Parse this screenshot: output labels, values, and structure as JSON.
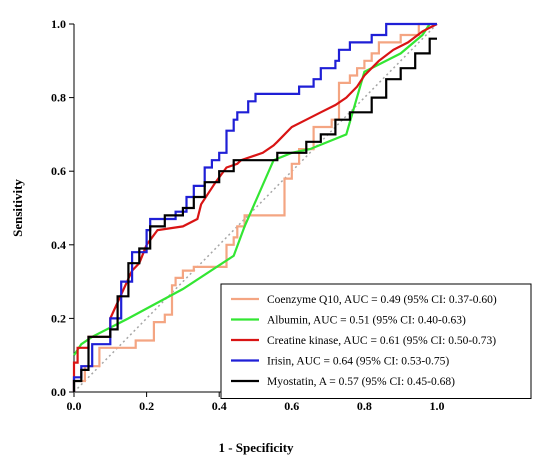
{
  "chart_data": {
    "type": "line",
    "title": "",
    "xlabel": "1 - Specificity",
    "ylabel": "Sensitivity",
    "xlim": [
      0,
      1
    ],
    "ylim": [
      0,
      1
    ],
    "xticks": [
      "0.0",
      "0.2",
      "0.4",
      "0.6",
      "0.8",
      "1.0"
    ],
    "yticks": [
      "0.0",
      "0.2",
      "0.4",
      "0.6",
      "0.8",
      "1.0"
    ],
    "grid": false,
    "legend_position": "bottom-right",
    "reference_line": {
      "style": "dotted",
      "color": "#a6a6a6",
      "x": [
        0,
        1
      ],
      "y": [
        0,
        1
      ]
    },
    "series": [
      {
        "name": "Coenzyme Q10, AUC = 0.49 (95% CI: 0.37-0.60)",
        "color": "#f4a582",
        "x": [
          0,
          0,
          0.03,
          0.03,
          0.07,
          0.07,
          0.17,
          0.17,
          0.22,
          0.22,
          0.25,
          0.25,
          0.27,
          0.27,
          0.28,
          0.28,
          0.3,
          0.3,
          0.33,
          0.33,
          0.42,
          0.42,
          0.44,
          0.44,
          0.45,
          0.45,
          0.47,
          0.47,
          0.49,
          0.49,
          0.58,
          0.58,
          0.6,
          0.6,
          0.62,
          0.62,
          0.66,
          0.66,
          0.71,
          0.71,
          0.73,
          0.73,
          0.76,
          0.76,
          0.78,
          0.78,
          0.8,
          0.8,
          0.82,
          0.82,
          0.84,
          0.84,
          0.9,
          0.9,
          0.95,
          0.95,
          1.0,
          1.0
        ],
        "y": [
          0,
          0.03,
          0.03,
          0.07,
          0.07,
          0.12,
          0.12,
          0.14,
          0.14,
          0.19,
          0.19,
          0.21,
          0.21,
          0.29,
          0.29,
          0.31,
          0.31,
          0.33,
          0.33,
          0.34,
          0.34,
          0.4,
          0.4,
          0.42,
          0.42,
          0.45,
          0.45,
          0.48,
          0.48,
          0.48,
          0.48,
          0.58,
          0.58,
          0.62,
          0.62,
          0.66,
          0.66,
          0.72,
          0.72,
          0.74,
          0.74,
          0.84,
          0.84,
          0.86,
          0.86,
          0.88,
          0.88,
          0.9,
          0.9,
          0.92,
          0.92,
          0.95,
          0.95,
          0.97,
          0.97,
          1.0,
          1.0,
          1.0
        ]
      },
      {
        "name": "Albumin, AUC = 0.51 (95% CI: 0.40-0.63)",
        "color": "#33e633",
        "x": [
          0.0,
          0.02,
          0.05,
          0.15,
          0.3,
          0.44,
          0.47,
          0.55,
          0.6,
          0.65,
          0.75,
          0.8,
          0.9,
          0.96,
          0.98
        ],
        "y": [
          0.1,
          0.13,
          0.15,
          0.2,
          0.28,
          0.37,
          0.45,
          0.63,
          0.65,
          0.66,
          0.7,
          0.87,
          0.92,
          0.97,
          1.0
        ]
      },
      {
        "name": "Creatine kinase, AUC = 0.61 (95% CI: 0.50-0.73)",
        "color": "#d91414",
        "x": [
          0,
          0,
          0.01,
          0.01,
          0.04,
          0.04,
          0.1,
          0.1,
          0.16,
          0.18,
          0.2,
          0.23,
          0.3,
          0.34,
          0.35,
          0.37,
          0.39,
          0.42,
          0.45,
          0.46,
          0.52,
          0.55,
          0.56,
          0.6,
          0.64,
          0.68,
          0.72,
          0.75,
          0.78,
          0.8,
          0.84,
          0.88,
          0.92,
          0.96,
          1.0
        ],
        "y": [
          0,
          0.08,
          0.08,
          0.12,
          0.12,
          0.15,
          0.15,
          0.2,
          0.33,
          0.35,
          0.4,
          0.44,
          0.45,
          0.47,
          0.51,
          0.54,
          0.57,
          0.61,
          0.62,
          0.63,
          0.65,
          0.67,
          0.68,
          0.72,
          0.74,
          0.76,
          0.78,
          0.8,
          0.83,
          0.86,
          0.9,
          0.93,
          0.95,
          0.98,
          1.0
        ]
      },
      {
        "name": "Irisin, AUC = 0.64 (95% CI: 0.53-0.75)",
        "color": "#1f1fd6",
        "x": [
          0,
          0,
          0.02,
          0.02,
          0.05,
          0.05,
          0.1,
          0.1,
          0.13,
          0.13,
          0.16,
          0.16,
          0.2,
          0.2,
          0.21,
          0.21,
          0.28,
          0.28,
          0.31,
          0.31,
          0.33,
          0.33,
          0.36,
          0.36,
          0.38,
          0.38,
          0.4,
          0.4,
          0.42,
          0.42,
          0.44,
          0.44,
          0.45,
          0.45,
          0.48,
          0.48,
          0.5,
          0.5,
          0.55,
          0.55,
          0.62,
          0.62,
          0.66,
          0.66,
          0.68,
          0.68,
          0.72,
          0.72,
          0.73,
          0.73,
          0.76,
          0.76,
          0.82,
          0.82,
          0.86,
          0.86,
          0.89,
          0.89,
          0.95,
          0.95,
          1.0
        ],
        "y": [
          0,
          0.04,
          0.04,
          0.07,
          0.07,
          0.13,
          0.13,
          0.2,
          0.2,
          0.3,
          0.3,
          0.38,
          0.38,
          0.44,
          0.44,
          0.47,
          0.47,
          0.49,
          0.49,
          0.53,
          0.53,
          0.56,
          0.56,
          0.61,
          0.61,
          0.63,
          0.63,
          0.65,
          0.65,
          0.71,
          0.71,
          0.74,
          0.74,
          0.76,
          0.76,
          0.79,
          0.79,
          0.81,
          0.81,
          0.81,
          0.81,
          0.83,
          0.83,
          0.85,
          0.85,
          0.88,
          0.88,
          0.9,
          0.9,
          0.93,
          0.93,
          0.95,
          0.95,
          0.97,
          0.97,
          1.0,
          1.0,
          1.0,
          1.0,
          1.0,
          1.0
        ]
      },
      {
        "name": "Myostatin, A = 0.57 (95% CI: 0.45-0.68)",
        "color": "#000000",
        "x": [
          0,
          0,
          0.02,
          0.02,
          0.04,
          0.04,
          0.1,
          0.1,
          0.12,
          0.12,
          0.15,
          0.15,
          0.18,
          0.18,
          0.21,
          0.21,
          0.25,
          0.25,
          0.3,
          0.3,
          0.33,
          0.33,
          0.36,
          0.36,
          0.4,
          0.4,
          0.44,
          0.44,
          0.48,
          0.48,
          0.56,
          0.56,
          0.6,
          0.6,
          0.64,
          0.64,
          0.68,
          0.68,
          0.72,
          0.72,
          0.76,
          0.76,
          0.82,
          0.82,
          0.86,
          0.86,
          0.9,
          0.9,
          0.94,
          0.94,
          0.98,
          0.98,
          1.0
        ],
        "y": [
          0,
          0.03,
          0.03,
          0.06,
          0.06,
          0.15,
          0.15,
          0.17,
          0.17,
          0.26,
          0.26,
          0.35,
          0.35,
          0.39,
          0.39,
          0.45,
          0.45,
          0.48,
          0.48,
          0.5,
          0.5,
          0.53,
          0.53,
          0.57,
          0.57,
          0.6,
          0.6,
          0.63,
          0.63,
          0.63,
          0.63,
          0.65,
          0.65,
          0.65,
          0.65,
          0.68,
          0.68,
          0.7,
          0.7,
          0.74,
          0.74,
          0.76,
          0.76,
          0.8,
          0.8,
          0.85,
          0.85,
          0.88,
          0.88,
          0.92,
          0.92,
          0.96,
          0.96
        ]
      }
    ]
  }
}
